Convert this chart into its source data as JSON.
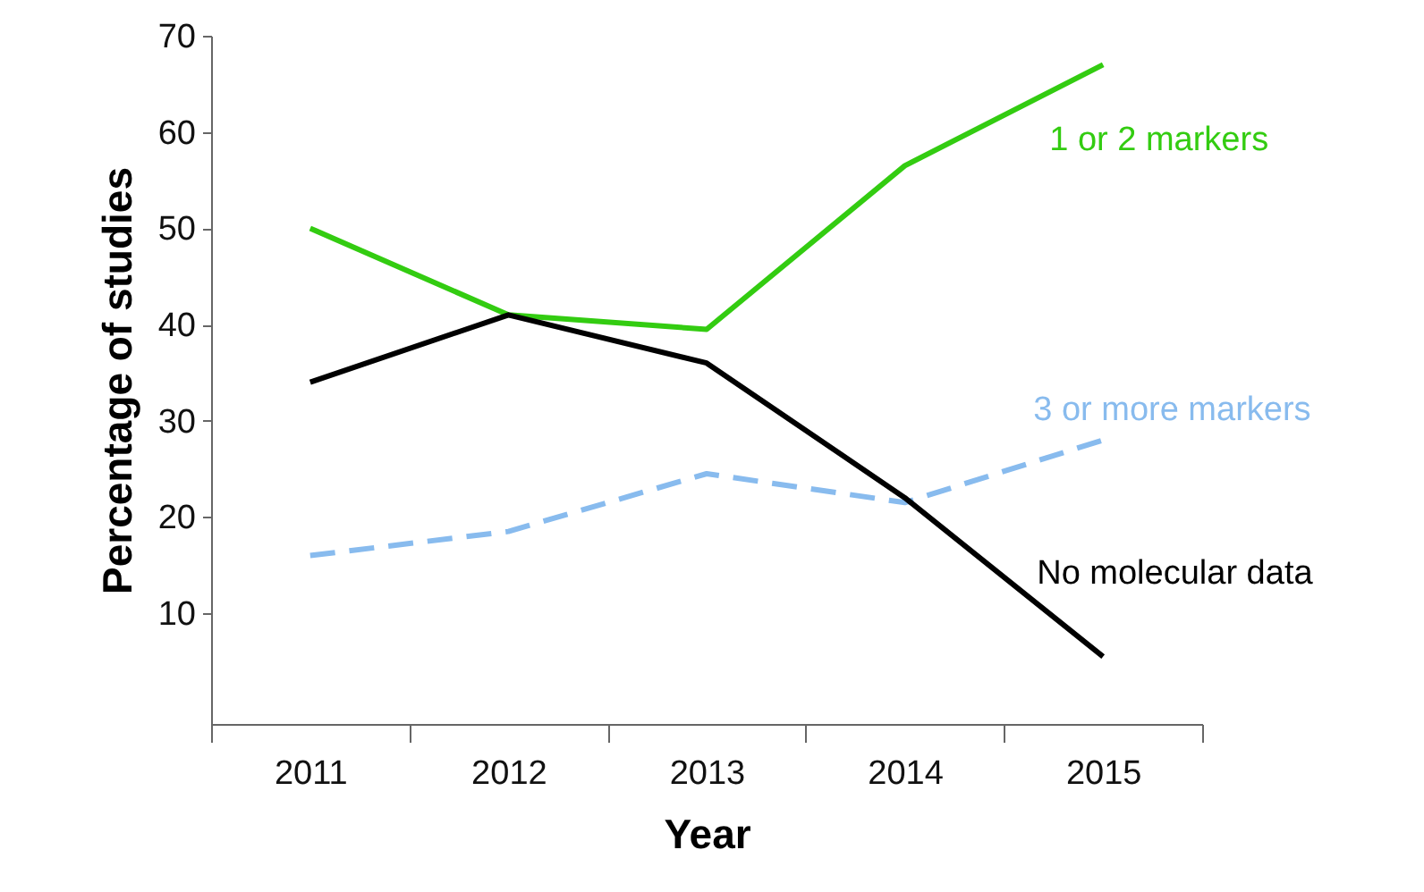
{
  "chart_data": {
    "type": "line",
    "xlabel": "Year",
    "ylabel": "Percentage of studies",
    "categories": [
      "2011",
      "2012",
      "2013",
      "2014",
      "2015"
    ],
    "series": [
      {
        "name": "1 or 2 markers",
        "color": "#33cc11",
        "values": [
          50,
          41,
          39.5,
          56.5,
          67
        ],
        "line_style": "solid"
      },
      {
        "name": "3 or more markers",
        "color": "#88bbee",
        "values": [
          16,
          18.5,
          24.5,
          21.5,
          28
        ],
        "line_style": "dashed"
      },
      {
        "name": "No molecular data",
        "color": "#000000",
        "values": [
          34,
          41,
          36,
          22,
          5.5
        ],
        "line_style": "solid"
      }
    ],
    "ylim": [
      -1.5,
      70
    ],
    "yticks": [
      10,
      20,
      30,
      40,
      50,
      60,
      70
    ],
    "grid": false,
    "legend": false,
    "marker": "none"
  }
}
